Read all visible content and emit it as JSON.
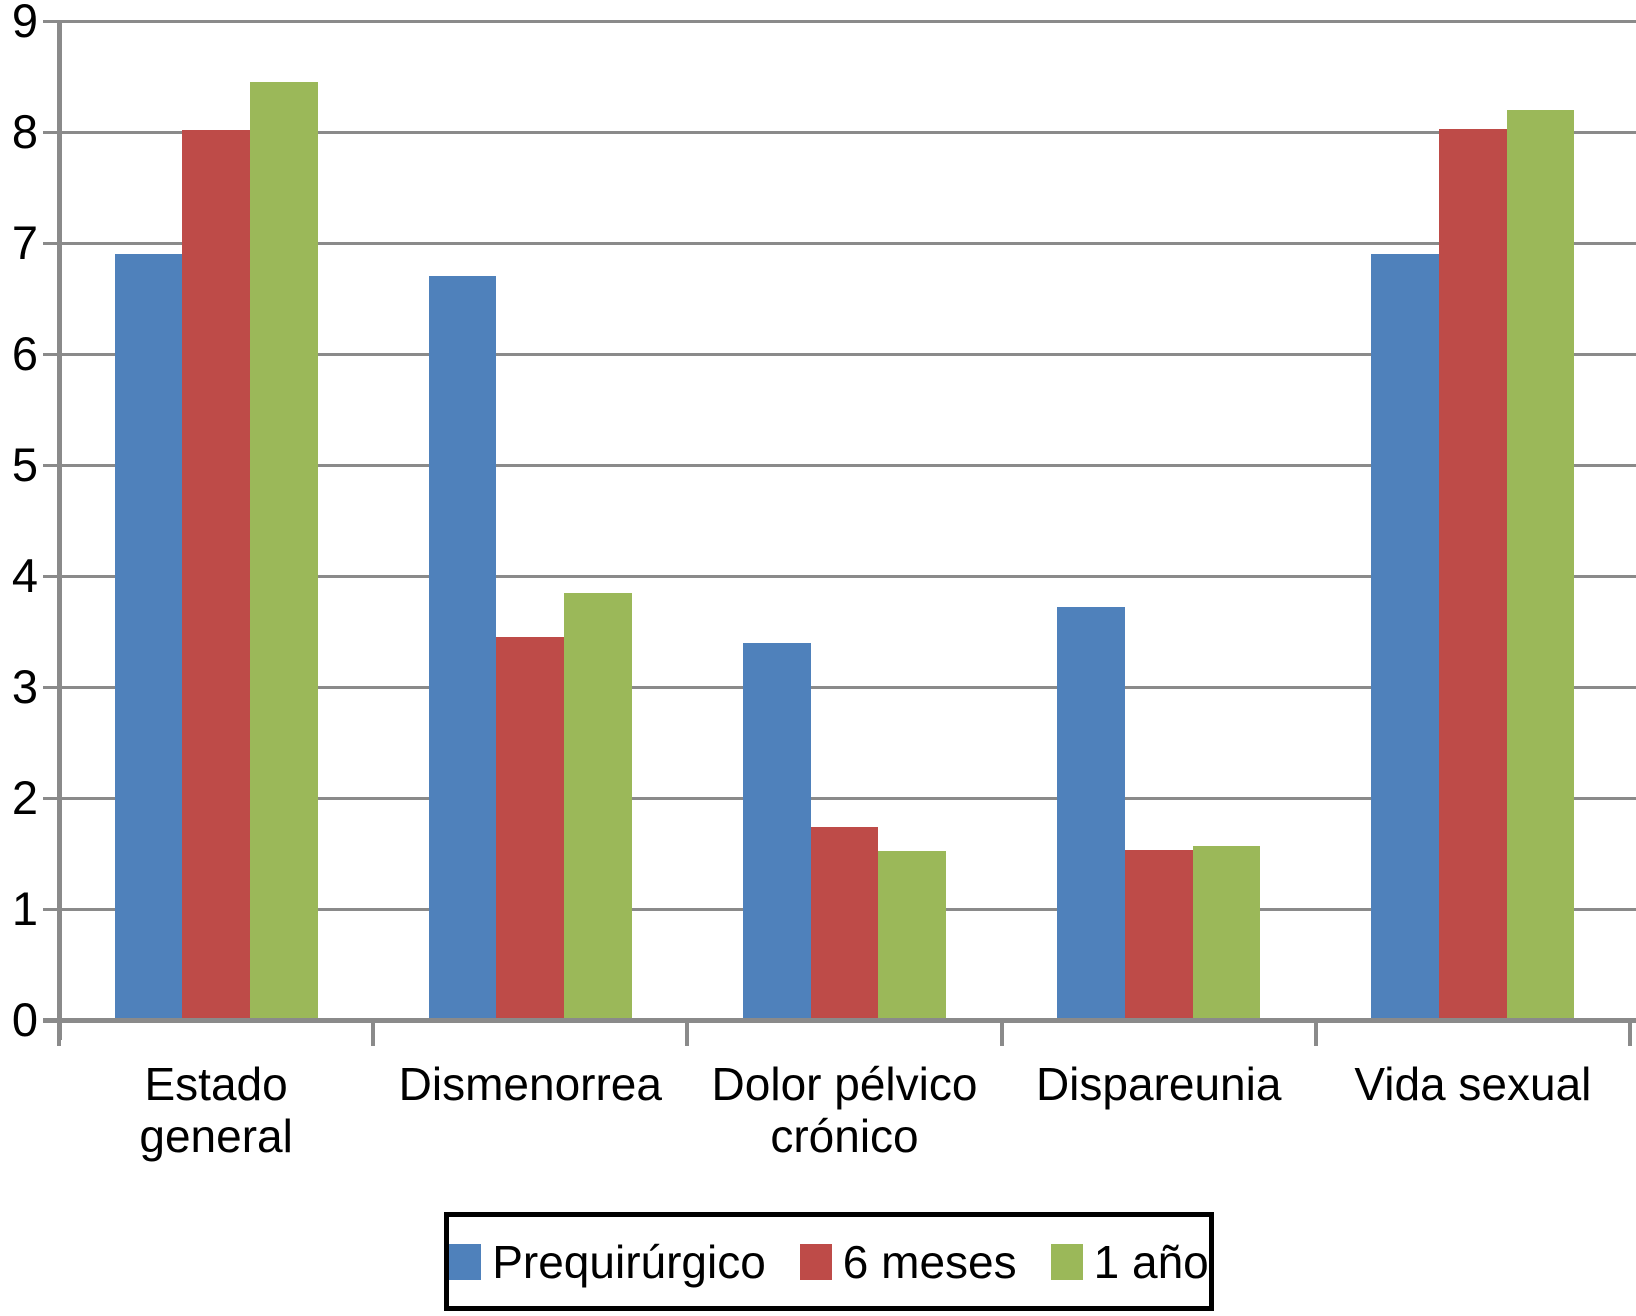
{
  "chart_data": {
    "type": "bar",
    "title": "",
    "xlabel": "",
    "ylabel": "",
    "categories": [
      "Estado general",
      "Dismenorrea",
      "Dolor pélvico crónico",
      "Dispareunia",
      "Vida sexual"
    ],
    "series": [
      {
        "name": "Prequirúrgico",
        "color": "#4F81BB",
        "values": [
          6.9,
          6.7,
          3.4,
          3.72,
          6.9
        ]
      },
      {
        "name": "6 meses",
        "color": "#BE4B48",
        "values": [
          8.02,
          3.45,
          1.74,
          1.53,
          8.03
        ]
      },
      {
        "name": "1 año",
        "color": "#9BB859",
        "values": [
          8.45,
          3.85,
          1.52,
          1.57,
          8.2
        ]
      }
    ],
    "ylim": [
      0,
      9
    ],
    "yticks": [
      "0",
      "1",
      "2",
      "3",
      "4",
      "5",
      "6",
      "7",
      "8",
      "9"
    ],
    "grid": true,
    "legend_position": "bottom"
  },
  "colors": {
    "grid": "#8A8A8A",
    "axis": "#8A8A8A",
    "legend_border": "#000000",
    "background": "#FFFFFF",
    "text": "#000000"
  }
}
